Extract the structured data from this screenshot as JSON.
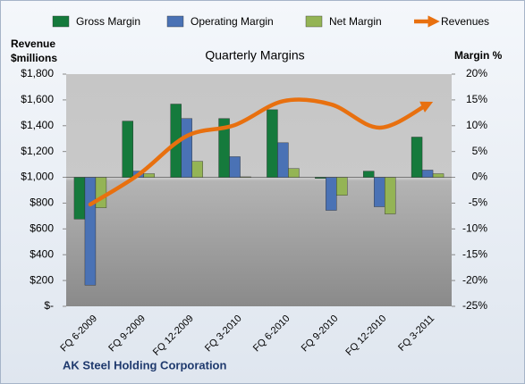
{
  "chart_data": {
    "type": "bar",
    "title": "Quarterly Margins",
    "ylabel": [
      "Revenue",
      "$millions"
    ],
    "y2label": "Margin %",
    "footer": "AK Steel Holding Corporation",
    "categories": [
      "FQ 6-2009",
      "FQ 9-2009",
      "FQ 12-2009",
      "FQ 3-2010",
      "FQ 6-2010",
      "FQ 9-2010",
      "FQ 12-2010",
      "FQ 3-2011"
    ],
    "series": [
      {
        "name": "Gross Margin",
        "color": "#157a3c",
        "axis": "y2",
        "values": [
          -8.1,
          10.9,
          14.2,
          11.4,
          13.1,
          -0.2,
          1.2,
          7.8
        ]
      },
      {
        "name": "Operating Margin",
        "color": "#4a72b5",
        "axis": "y2",
        "values": [
          -20.9,
          1.2,
          11.4,
          4.0,
          6.7,
          -6.4,
          -5.7,
          1.4
        ]
      },
      {
        "name": "Net Margin",
        "color": "#94b455",
        "axis": "y2",
        "values": [
          -5.9,
          0.7,
          3.1,
          0.1,
          1.7,
          -3.5,
          -7.1,
          0.7
        ]
      },
      {
        "name": "Revenues",
        "color": "#e8700f",
        "type": "line",
        "values": [
          790,
          1020,
          1320,
          1405,
          1590,
          1565,
          1385,
          1565
        ]
      }
    ],
    "ylim": [
      0,
      1800
    ],
    "yticks": [
      {
        "value": 0,
        "label": "$-"
      },
      {
        "value": 200,
        "label": "$200"
      },
      {
        "value": 400,
        "label": "$400"
      },
      {
        "value": 600,
        "label": "$600"
      },
      {
        "value": 800,
        "label": "$800"
      },
      {
        "value": 1000,
        "label": "$1,000"
      },
      {
        "value": 1200,
        "label": "$1,200"
      },
      {
        "value": 1400,
        "label": "$1,400"
      },
      {
        "value": 1600,
        "label": "$1,600"
      },
      {
        "value": 1800,
        "label": "$1,800"
      }
    ],
    "y2lim": [
      -25,
      20
    ],
    "y2ticks": [
      {
        "value": -25,
        "label": "-25%"
      },
      {
        "value": -20,
        "label": "-20%"
      },
      {
        "value": -15,
        "label": "-15%"
      },
      {
        "value": -10,
        "label": "-10%"
      },
      {
        "value": -5,
        "label": "-5%"
      },
      {
        "value": 0,
        "label": "0%"
      },
      {
        "value": 5,
        "label": "5%"
      },
      {
        "value": 10,
        "label": "10%"
      },
      {
        "value": 15,
        "label": "15%"
      },
      {
        "value": 20,
        "label": "20%"
      }
    ]
  }
}
